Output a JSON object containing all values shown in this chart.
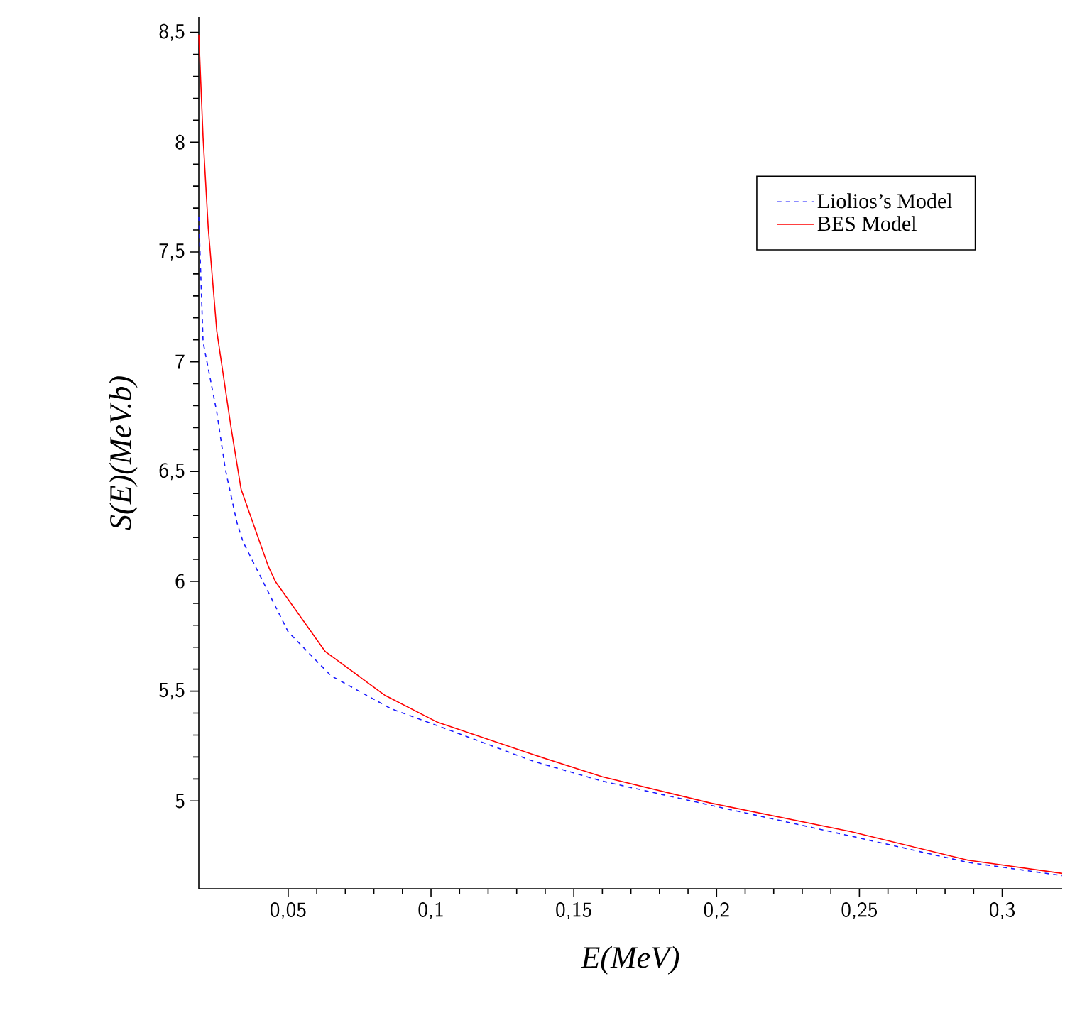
{
  "chart_data": {
    "type": "line",
    "xlabel": "E(MeV)",
    "ylabel": "S(E)(MeV.b)",
    "xlim": [
      0.0187,
      0.321
    ],
    "ylim": [
      4.6,
      8.57
    ],
    "xticks": [
      {
        "value": 0.05,
        "label": "0,05"
      },
      {
        "value": 0.1,
        "label": "0,1"
      },
      {
        "value": 0.15,
        "label": "0,15"
      },
      {
        "value": 0.2,
        "label": "0,2"
      },
      {
        "value": 0.25,
        "label": "0,25"
      },
      {
        "value": 0.3,
        "label": "0,3"
      }
    ],
    "yticks": [
      5,
      {
        "value": 5.5,
        "label": "5,5"
      },
      6,
      {
        "value": 6.5,
        "label": "6,5"
      },
      7,
      {
        "value": 7.5,
        "label": "7,5"
      },
      8,
      {
        "value": 8.5,
        "label": "8,5"
      }
    ],
    "grid": false,
    "legend": "top right",
    "series": [
      {
        "name": "Liolios’s Model",
        "color": "#1a1aff",
        "line_style": "dashed",
        "x": [
          0.0187,
          0.0202,
          0.025,
          0.028,
          0.032,
          0.0342,
          0.05,
          0.065,
          0.086,
          0.107,
          0.136,
          0.16,
          0.198,
          0.247,
          0.288,
          0.321
        ],
        "values": [
          7.66,
          7.09,
          6.77,
          6.51,
          6.27,
          6.18,
          5.77,
          5.57,
          5.42,
          5.32,
          5.18,
          5.09,
          4.98,
          4.84,
          4.72,
          4.66
        ]
      },
      {
        "name": "BES Model",
        "color": "#ff0000",
        "line_style": "solid",
        "x": [
          0.0187,
          0.0202,
          0.022,
          0.025,
          0.03,
          0.0335,
          0.04,
          0.043,
          0.0455,
          0.063,
          0.084,
          0.102,
          0.136,
          0.16,
          0.198,
          0.247,
          0.288,
          0.321
        ],
        "values": [
          8.49,
          8.02,
          7.61,
          7.14,
          6.7,
          6.42,
          6.18,
          6.07,
          6.0,
          5.68,
          5.48,
          5.36,
          5.21,
          5.11,
          4.99,
          4.86,
          4.73,
          4.67
        ]
      }
    ]
  }
}
